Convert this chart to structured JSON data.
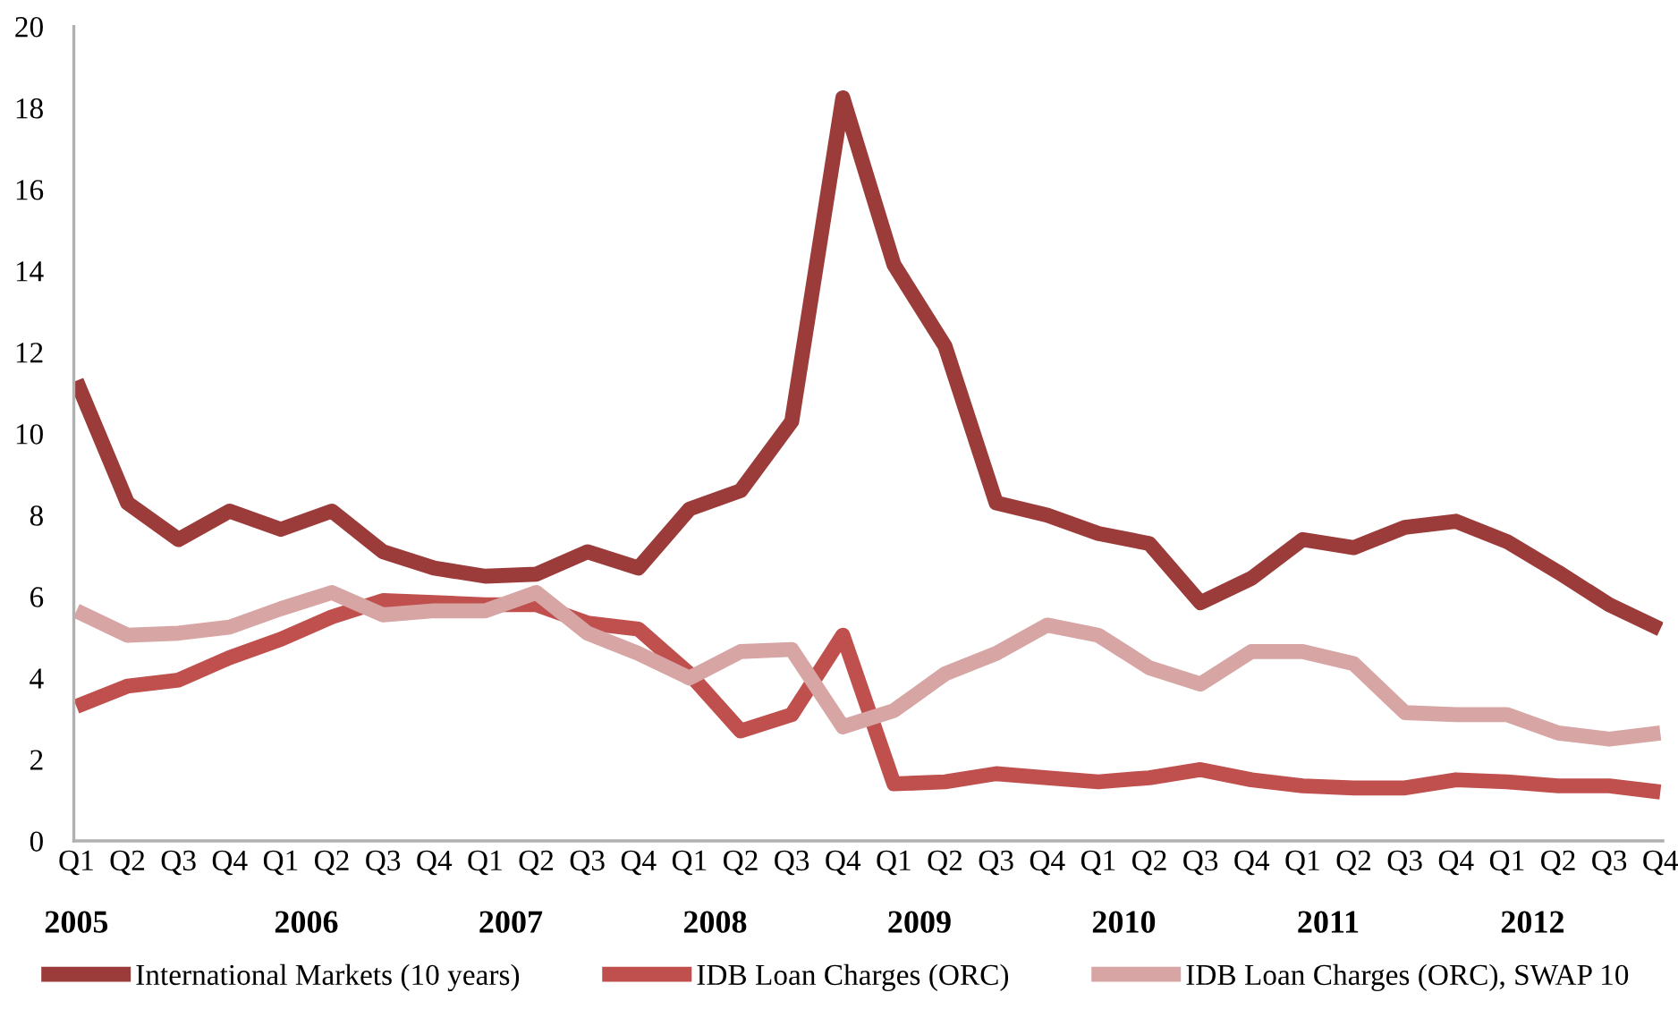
{
  "chart_data": {
    "type": "line",
    "categories": [
      "Q1",
      "Q2",
      "Q3",
      "Q4",
      "Q1",
      "Q2",
      "Q3",
      "Q4",
      "Q1",
      "Q2",
      "Q3",
      "Q4",
      "Q1",
      "Q2",
      "Q3",
      "Q4",
      "Q1",
      "Q2",
      "Q3",
      "Q4",
      "Q1",
      "Q2",
      "Q3",
      "Q4",
      "Q1",
      "Q2",
      "Q3",
      "Q4",
      "Q1",
      "Q2",
      "Q3",
      "Q4"
    ],
    "series": [
      {
        "name": "International Markets (10 years)",
        "color": "#9b3b3a",
        "values": [
          11.3,
          8.3,
          7.4,
          8.1,
          7.65,
          8.1,
          7.1,
          6.7,
          6.5,
          6.55,
          7.1,
          6.7,
          8.15,
          8.6,
          10.3,
          18.25,
          14.15,
          12.15,
          8.3,
          8.0,
          7.55,
          7.3,
          5.85,
          6.45,
          7.4,
          7.2,
          7.7,
          7.85,
          7.35,
          6.6,
          5.8,
          5.2
        ]
      },
      {
        "name": "IDB Loan Charges (ORC)",
        "color": "#c0504d",
        "values": [
          3.3,
          3.8,
          3.95,
          4.5,
          4.95,
          5.5,
          5.9,
          5.85,
          5.8,
          5.8,
          5.35,
          5.2,
          4.1,
          2.7,
          3.1,
          5.05,
          1.4,
          1.45,
          1.65,
          1.55,
          1.45,
          1.55,
          1.75,
          1.5,
          1.35,
          1.3,
          1.3,
          1.5,
          1.45,
          1.35,
          1.35,
          1.2
        ]
      },
      {
        "name": "IDB Loan Charges (ORC), SWAP 10",
        "color": "#d6a5a4",
        "values": [
          5.65,
          5.05,
          5.1,
          5.25,
          5.7,
          6.1,
          5.55,
          5.65,
          5.65,
          6.1,
          5.1,
          4.6,
          4.0,
          4.65,
          4.7,
          2.8,
          3.2,
          4.1,
          4.6,
          5.3,
          5.05,
          4.25,
          3.85,
          4.65,
          4.65,
          4.35,
          3.15,
          3.1,
          3.1,
          2.65,
          2.5,
          2.65
        ]
      }
    ],
    "annotations": [
      "2005",
      "2006",
      "2007",
      "2008",
      "2009",
      "2010",
      "2011",
      "2012"
    ],
    "ylim": [
      0,
      20
    ],
    "yticks": [
      0,
      2,
      4,
      6,
      8,
      10,
      12,
      14,
      16,
      18,
      20
    ],
    "grid": false,
    "legend": "bottom",
    "marker": "none",
    "line_style": "solid"
  }
}
